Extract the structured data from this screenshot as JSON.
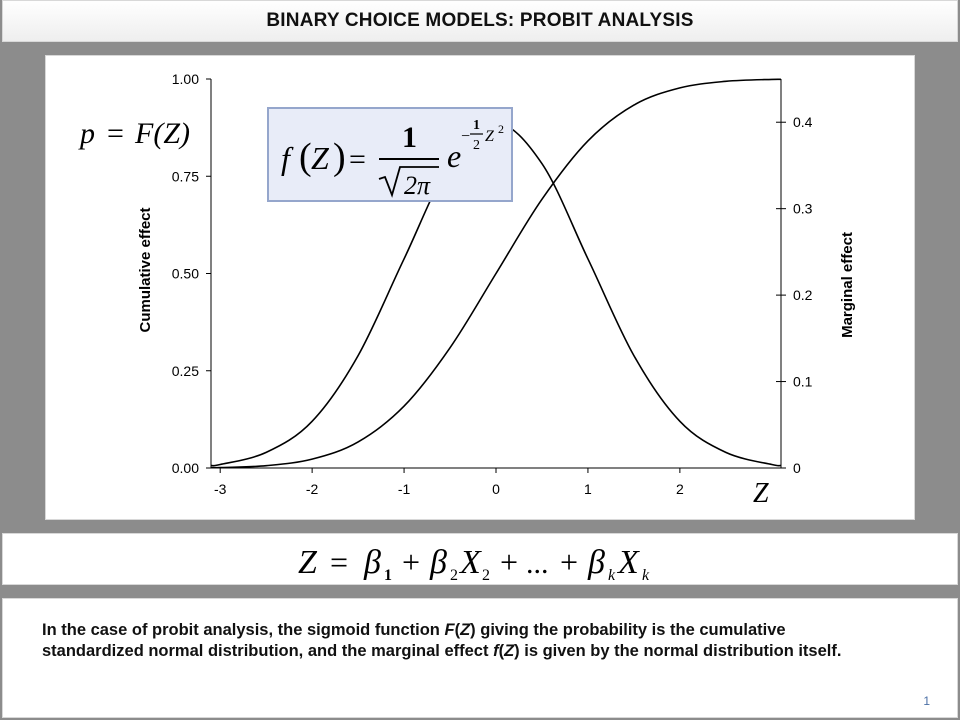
{
  "title": "BINARY CHOICE MODELS: PROBIT ANALYSIS",
  "chart_data": {
    "type": "line",
    "xlabel": "Z",
    "ylabel_left": "Cumulative effect",
    "ylabel_right": "Marginal effect",
    "xlim": [
      -3.1,
      3.1
    ],
    "ylim_left": [
      0,
      1
    ],
    "ylim_right": [
      0,
      0.45
    ],
    "x_ticks": [
      "-3",
      "-2",
      "-1",
      "0",
      "1",
      "2"
    ],
    "x_tick_values": [
      -3,
      -2,
      -1,
      0,
      1,
      2
    ],
    "y_ticks_left": [
      "0.00",
      "0.25",
      "0.50",
      "0.75",
      "1.00"
    ],
    "y_tick_values_left": [
      0,
      0.25,
      0.5,
      0.75,
      1.0
    ],
    "y_ticks_right": [
      "0",
      "0.1",
      "0.2",
      "0.3",
      "0.4"
    ],
    "y_tick_values_right": [
      0,
      0.1,
      0.2,
      0.3,
      0.4
    ],
    "series": [
      {
        "axis": "left",
        "x": [
          -3.1,
          -3.0,
          -2.5,
          -2.0,
          -1.5,
          -1.0,
          -0.5,
          0.0,
          0.5,
          1.0,
          1.5,
          2.0,
          2.5,
          3.0,
          3.1
        ],
        "values": [
          0.001,
          0.001,
          0.006,
          0.023,
          0.067,
          0.159,
          0.309,
          0.5,
          0.691,
          0.841,
          0.933,
          0.977,
          0.994,
          0.999,
          0.999
        ]
      },
      {
        "axis": "right",
        "x": [
          -3.1,
          -3.0,
          -2.5,
          -2.0,
          -1.5,
          -1.0,
          -0.5,
          0.0,
          0.5,
          1.0,
          1.5,
          2.0,
          2.5,
          3.0,
          3.1
        ],
        "values": [
          0.003,
          0.004,
          0.018,
          0.054,
          0.13,
          0.242,
          0.352,
          0.399,
          0.352,
          0.242,
          0.13,
          0.054,
          0.018,
          0.004,
          0.003
        ]
      }
    ]
  },
  "formulas": {
    "cdf_lhs": "p",
    "cdf_eq": "=",
    "cdf_rhs": "F(Z)",
    "pdf": {
      "f": "f",
      "paren_open": "(",
      "var": "Z",
      "paren_close": ")",
      "eq": "=",
      "num": "1",
      "den": "2π",
      "e": "e",
      "exp_sign": "−",
      "exp_num": "1",
      "exp_den": "2",
      "exp_var": "Z",
      "exp_pow": "2"
    },
    "z_equation": {
      "lhs": "Z",
      "eq": "=",
      "b1": "β",
      "b1_sub": "1",
      "plus1": "+",
      "b2": "β",
      "b2_sub": "2",
      "x2": "X",
      "x2_sub": "2",
      "plus2": "+",
      "dots": "...",
      "plus3": "+",
      "bk": "β",
      "bk_sub": "k",
      "xk": "X",
      "xk_sub": "k"
    }
  },
  "caption": {
    "part1": "In the case of probit analysis, the sigmoid function ",
    "fz_big_f": "F",
    "paren_open1": "(",
    "z1": "Z",
    "paren_close1": ")",
    "part2": " giving the probability is the cumulative standardized normal distribution, and the marginal effect ",
    "fz_small_f": "f",
    "paren_open2": "(",
    "z2": "Z",
    "paren_close2": ")",
    "part3": " is given by the normal distribution itself."
  },
  "page_number": "1",
  "colors": {
    "background": "#8c8c8c",
    "panel": "#ffffff",
    "formula_box_fill": "#e8ecf8",
    "formula_box_border": "#95a6cc",
    "curve": "#000000",
    "page_number": "#4a6fa5"
  }
}
